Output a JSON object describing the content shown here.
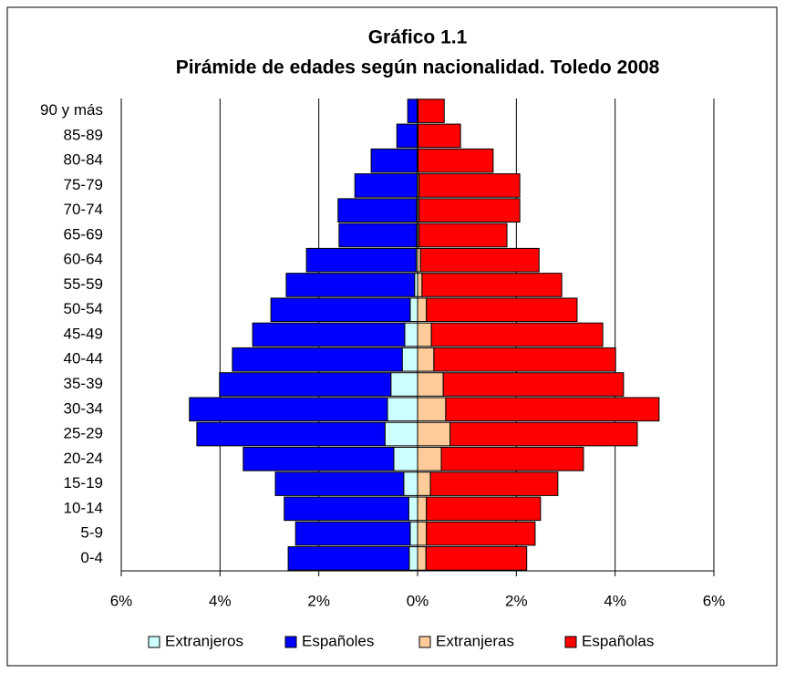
{
  "chart_data": {
    "type": "pyramid",
    "title": "Gráfico 1.1",
    "subtitle": "Pirámide de edades según nacionalidad. Toledo 2008",
    "categories": [
      "0-4",
      "5-9",
      "10-14",
      "15-19",
      "20-24",
      "25-29",
      "30-34",
      "35-39",
      "40-44",
      "45-49",
      "50-54",
      "55-59",
      "60-64",
      "65-69",
      "70-74",
      "75-79",
      "80-84",
      "85-89",
      "90 y más"
    ],
    "series": [
      {
        "name": "Extranjeros",
        "color": "#ccffff",
        "values": [
          -0.17,
          -0.15,
          -0.18,
          -0.28,
          -0.48,
          -0.66,
          -0.61,
          -0.54,
          -0.31,
          -0.26,
          -0.15,
          -0.06,
          -0.03,
          -0.02,
          -0.02,
          -0.01,
          -0.01,
          -0.01,
          -0.01
        ]
      },
      {
        "name": "Españoles",
        "color": "#0000ff",
        "values": [
          -2.45,
          -2.32,
          -2.52,
          -2.6,
          -3.05,
          -3.81,
          -4.01,
          -3.47,
          -3.44,
          -3.08,
          -2.82,
          -2.6,
          -2.22,
          -1.57,
          -1.59,
          -1.26,
          -0.93,
          -0.41,
          -0.19
        ]
      },
      {
        "name": "Extranjeras",
        "color": "#ffcc99",
        "values": [
          0.17,
          0.18,
          0.18,
          0.26,
          0.48,
          0.66,
          0.57,
          0.52,
          0.33,
          0.28,
          0.18,
          0.09,
          0.06,
          0.03,
          0.03,
          0.03,
          0.01,
          0.01,
          0.01
        ]
      },
      {
        "name": "Españolas",
        "color": "#ff0000",
        "values": [
          2.04,
          2.2,
          2.31,
          2.58,
          2.88,
          3.79,
          4.32,
          3.65,
          3.68,
          3.47,
          3.05,
          2.83,
          2.4,
          1.78,
          2.04,
          2.04,
          1.52,
          0.86,
          0.53
        ]
      }
    ],
    "xlim": [
      -6,
      6
    ],
    "xticks": [
      {
        "value": -6,
        "label": "6%"
      },
      {
        "value": -4,
        "label": "4%"
      },
      {
        "value": -2,
        "label": "2%"
      },
      {
        "value": 0,
        "label": "0%"
      },
      {
        "value": 2,
        "label": "2%"
      },
      {
        "value": 4,
        "label": "4%"
      },
      {
        "value": 6,
        "label": "6%"
      }
    ],
    "grid": true,
    "legend": "bottom"
  }
}
